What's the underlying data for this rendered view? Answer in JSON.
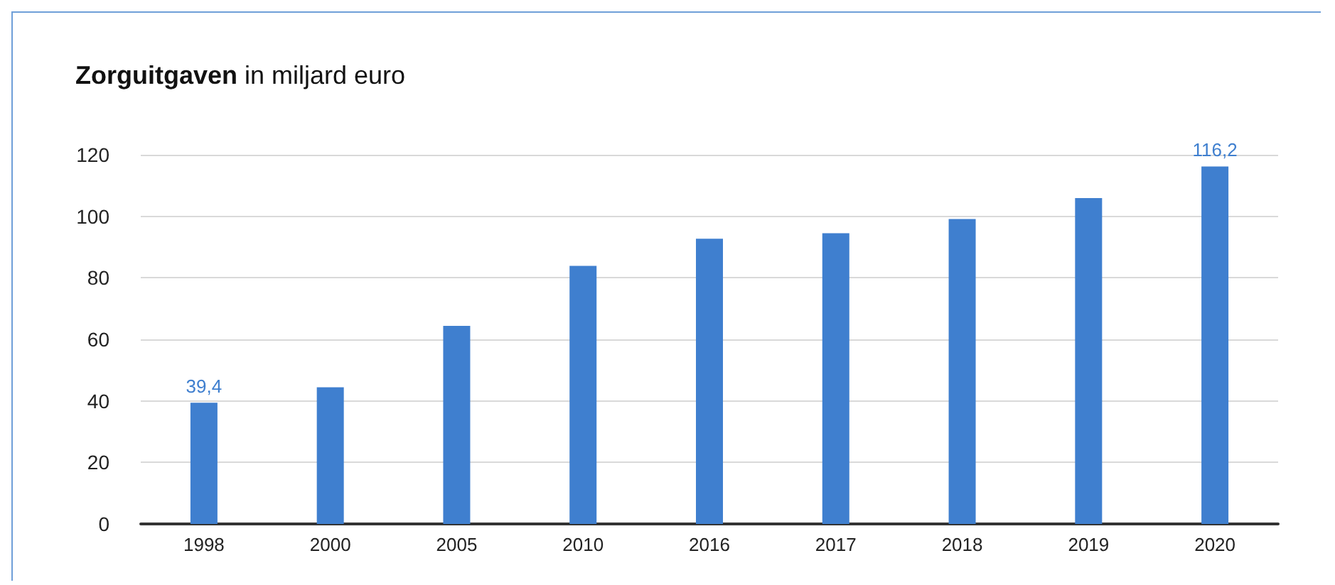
{
  "chart_data": {
    "type": "bar",
    "title": "Zorguitgaven in miljard euro",
    "categories": [
      "1998",
      "2000",
      "2005",
      "2010",
      "2016",
      "2017",
      "2018",
      "2019",
      "2020"
    ],
    "values": [
      39.4,
      44.4,
      64.4,
      83.9,
      92.7,
      94.5,
      99.1,
      105.9,
      116.2
    ],
    "value_labels": [
      "39,4",
      null,
      null,
      null,
      null,
      null,
      null,
      null,
      "116,2"
    ],
    "color": "#3f7fcf",
    "ylim": [
      0,
      120
    ],
    "yticks": [
      0,
      20,
      40,
      60,
      80,
      100,
      120
    ],
    "grid": "y"
  }
}
